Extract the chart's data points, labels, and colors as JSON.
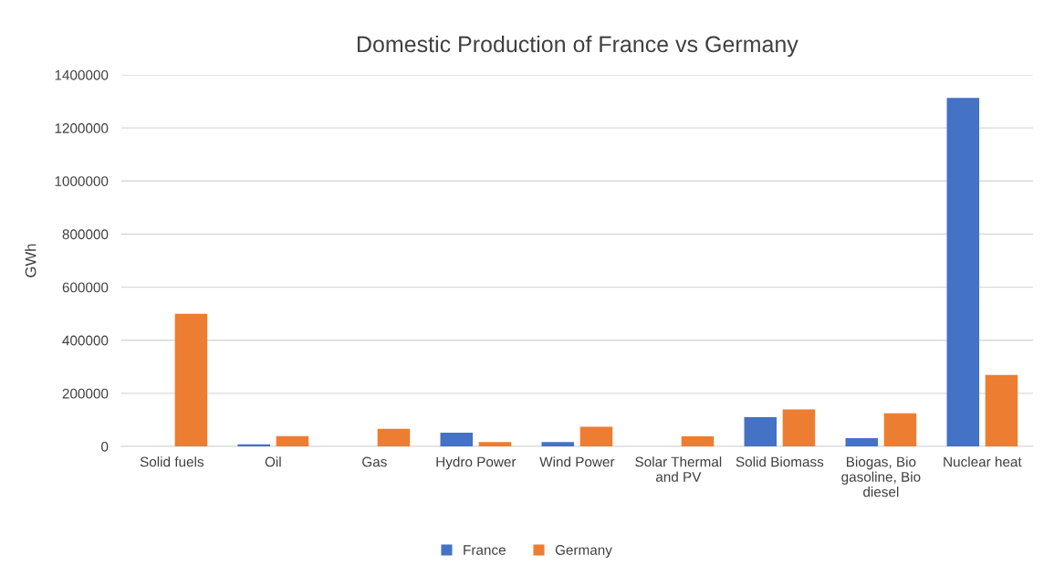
{
  "chart_data": {
    "type": "bar",
    "title": "Domestic Production of France vs Germany",
    "ylabel": "GWh",
    "categories": [
      "Solid fuels",
      "Oil",
      "Gas",
      "Hydro Power",
      "Wind Power",
      "Solar Thermal and PV",
      "Solid Biomass",
      "Biogas, Bio gasoline, Bio diesel",
      "Nuclear heat"
    ],
    "series": [
      {
        "name": "France",
        "color": "#4472c4",
        "values": [
          0,
          8000,
          0,
          52000,
          16000,
          0,
          110000,
          31000,
          1313000
        ]
      },
      {
        "name": "Germany",
        "color": "#ed7d31",
        "values": [
          500000,
          39000,
          66000,
          16000,
          74000,
          38000,
          139000,
          125000,
          269000
        ]
      }
    ],
    "ylim": [
      0,
      1400000
    ],
    "yticks": [
      0,
      200000,
      400000,
      600000,
      800000,
      1000000,
      1200000,
      1400000
    ],
    "grid": "y",
    "legend": "bottom"
  }
}
